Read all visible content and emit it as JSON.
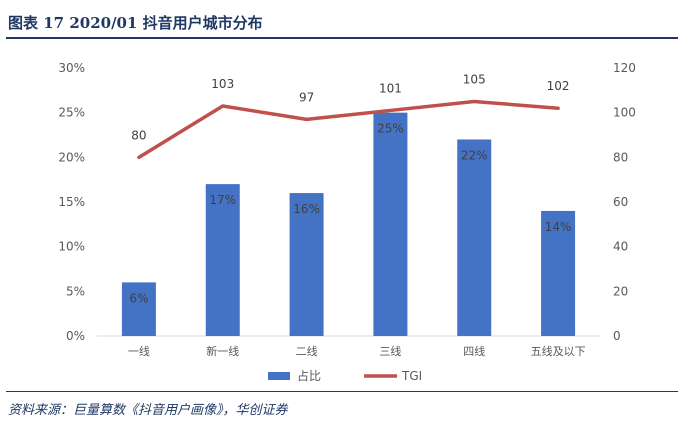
{
  "figure": {
    "title": "图表 17   2020/01 抖音用户城市分布",
    "source": "资料来源：巨量算数《抖音用户画像》，华创证券"
  },
  "colors": {
    "bar": "#4472c4",
    "line": "#c0504d",
    "text": "#595959",
    "axis": "#d9d9d9",
    "heading": "#1f3864"
  },
  "chart_data": {
    "type": "bar",
    "categories": [
      "一线",
      "新一线",
      "二线",
      "三线",
      "四线",
      "五线及以下"
    ],
    "series": [
      {
        "name": "占比",
        "type": "bar",
        "axis": "left",
        "values": [
          6,
          17,
          16,
          25,
          22,
          14
        ],
        "labels": [
          "6%",
          "17%",
          "16%",
          "25%",
          "22%",
          "14%"
        ]
      },
      {
        "name": "TGI",
        "type": "line",
        "axis": "right",
        "values": [
          80,
          103,
          97,
          101,
          105,
          102
        ],
        "labels": [
          "80",
          "103",
          "97",
          "101",
          "105",
          "102"
        ]
      }
    ],
    "y_left": {
      "ylim": [
        0,
        30
      ],
      "ticks": [
        "0%",
        "5%",
        "10%",
        "15%",
        "20%",
        "25%",
        "30%"
      ]
    },
    "y_right": {
      "ylim": [
        0,
        120
      ],
      "ticks": [
        "0",
        "20",
        "40",
        "60",
        "80",
        "100",
        "120"
      ]
    },
    "grid": false,
    "legend": "bottom"
  }
}
